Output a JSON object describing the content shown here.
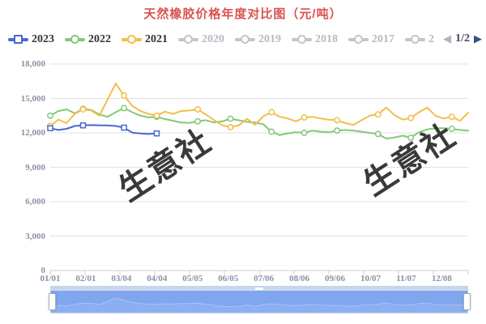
{
  "title": {
    "text": "天然橡胶价格年度对比图（元/吨）"
  },
  "colors": {
    "title": "#d9534f",
    "axis_label": "#8f90a6",
    "gridline": "#e0e0e6",
    "axis_line": "#cccccc",
    "legend_active_text": "#333333",
    "legend_inactive": "#c2c6cc",
    "legend_inactive_text": "#b6bac2",
    "pager_disabled": "#b0b4ba",
    "pager_enabled": "#3b5280",
    "pager_text": "#3b4a6b",
    "watermark": "rgba(15,15,15,0.82)",
    "slider_track": "#ccd6ea",
    "slider_fill": "#7fa6ef",
    "slider_shadow_line": "#a8c3f7",
    "series_2023": "#4a68d0",
    "series_2022": "#84c878",
    "series_2021": "#f5bd4a"
  },
  "legend": {
    "items": [
      {
        "label": "2023",
        "color": "#4a68d0",
        "active": true,
        "marker": "square"
      },
      {
        "label": "2022",
        "color": "#84c878",
        "active": true,
        "marker": "circle"
      },
      {
        "label": "2021",
        "color": "#f5bd4a",
        "active": true,
        "marker": "circle"
      },
      {
        "label": "2020",
        "color": "#c2c6cc",
        "active": false,
        "marker": "circle"
      },
      {
        "label": "2019",
        "color": "#c2c6cc",
        "active": false,
        "marker": "circle"
      },
      {
        "label": "2018",
        "color": "#c2c6cc",
        "active": false,
        "marker": "circle"
      },
      {
        "label": "2017",
        "color": "#c2c6cc",
        "active": false,
        "marker": "circle"
      },
      {
        "label": "2",
        "color": "#c2c6cc",
        "active": false,
        "marker": "circle"
      }
    ],
    "pager": {
      "prev": "◀",
      "page": "1/2",
      "next": "▶"
    }
  },
  "watermark": {
    "text": "生意社"
  },
  "chart_data": {
    "type": "line",
    "title": "天然橡胶价格年度对比图（元/吨）",
    "unit": "元/吨",
    "xlabel": "",
    "ylabel": "",
    "ylim": [
      0,
      18000
    ],
    "grid": true,
    "legend_position": "top",
    "ytick_values": [
      18000,
      15000,
      12000,
      9000,
      6000,
      3000,
      0
    ],
    "ytick_labels": [
      "18,000",
      "15,000",
      "12,000",
      "9,000",
      "6,000",
      "3,000",
      "0"
    ],
    "x_tick_labels": [
      "01/01",
      "02/01",
      "03/04",
      "04/04",
      "05/05",
      "06/05",
      "07/06",
      "08/06",
      "09/06",
      "10/07",
      "11/07",
      "12/08"
    ],
    "x_tick_days": [
      0,
      31,
      62,
      93,
      124,
      155,
      186,
      217,
      248,
      279,
      310,
      341
    ],
    "days_per_year": 364,
    "x_unit": "week-index (7-day steps, Jan 1 = 0)",
    "marker_weeks": [
      0,
      4,
      9,
      13,
      18,
      22,
      27,
      31,
      35,
      40,
      44,
      49
    ],
    "series": [
      {
        "name": "2022",
        "color": "#84c878",
        "marker": "circle",
        "values": [
          13500,
          13900,
          14050,
          13700,
          14100,
          14000,
          13600,
          13400,
          13800,
          14150,
          13800,
          13500,
          13350,
          13400,
          13200,
          13050,
          12900,
          12870,
          13000,
          13100,
          12900,
          13000,
          13230,
          13100,
          12950,
          12900,
          12750,
          12100,
          11800,
          11950,
          12050,
          12000,
          12200,
          12100,
          12050,
          12200,
          12250,
          12200,
          12100,
          12000,
          11900,
          11500,
          11600,
          11750,
          11580,
          12050,
          12300,
          12400,
          12400,
          12350,
          12250,
          12200
        ]
      },
      {
        "name": "2021",
        "color": "#f5bd4a",
        "marker": "circle",
        "values": [
          12600,
          13150,
          12850,
          13650,
          14050,
          13950,
          13500,
          14900,
          16300,
          15250,
          14350,
          13900,
          13650,
          13500,
          13850,
          13650,
          13900,
          13950,
          14050,
          13600,
          13100,
          12650,
          12500,
          12650,
          13230,
          12700,
          13450,
          13800,
          13400,
          13250,
          13000,
          13340,
          13400,
          13250,
          13150,
          13100,
          12850,
          12700,
          13100,
          13500,
          13600,
          14200,
          13550,
          13150,
          13300,
          13800,
          14200,
          13500,
          13250,
          13400,
          13050,
          13750
        ]
      },
      {
        "name": "2023",
        "color": "#4a68d0",
        "marker": "square",
        "values": [
          12400,
          12250,
          12350,
          12600,
          12650,
          12680,
          12660,
          12640,
          12600,
          12450,
          12020,
          11950,
          11900,
          11950
        ]
      }
    ]
  },
  "slider": {
    "range_label": "full-range selected",
    "page_bg": "#ffffff"
  }
}
